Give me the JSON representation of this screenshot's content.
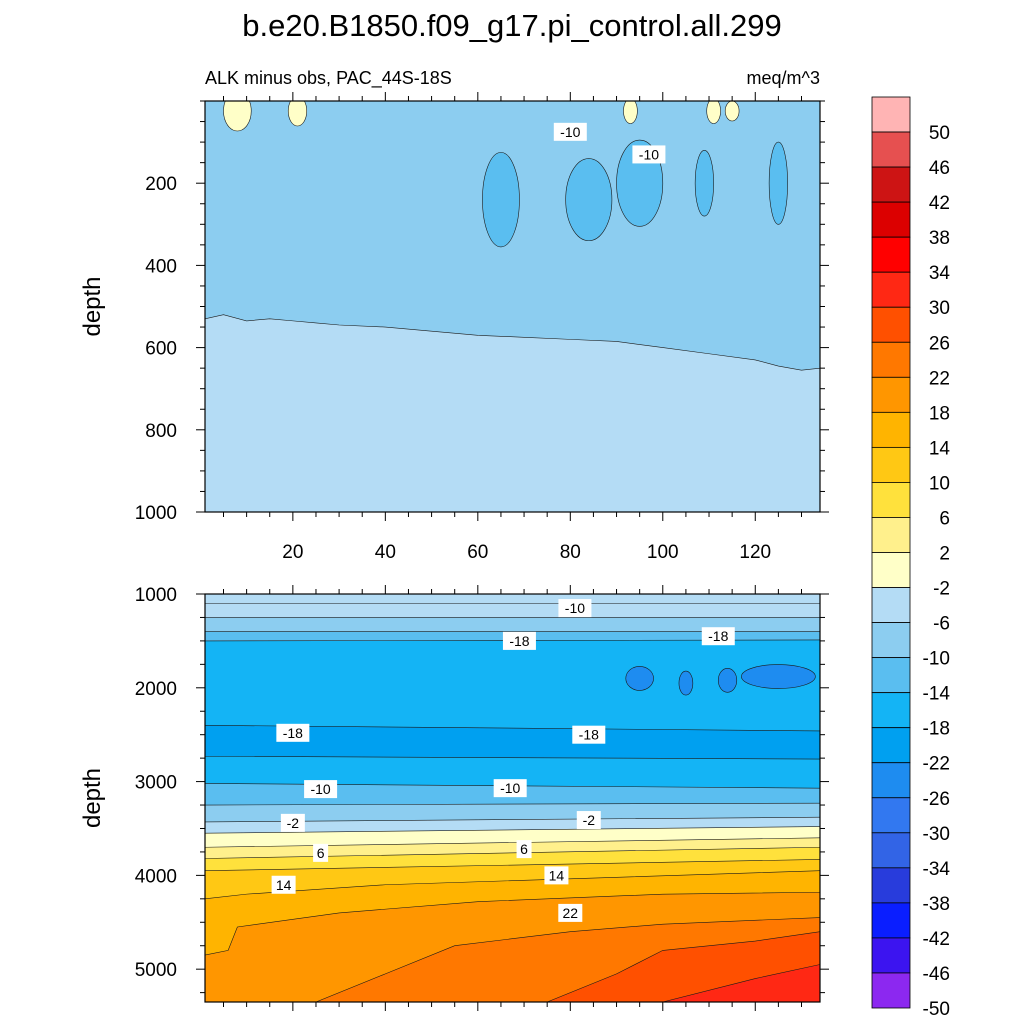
{
  "title": "b.e20.B1850.f09_g17.pi_control.all.299",
  "subtitle_left": "ALK minus obs, PAC_44S-18S",
  "subtitle_right": "meq/m^3",
  "chart_data": {
    "type": "heatmap",
    "variable": "ALK minus obs",
    "region": "PAC_44S-18S",
    "units": "meq/m^3",
    "x": {
      "range": [
        1,
        134
      ],
      "ticks": [
        "20",
        "40",
        "60",
        "80",
        "100",
        "120"
      ],
      "tick_values": [
        20,
        40,
        60,
        80,
        100,
        120
      ]
    },
    "colorbar": {
      "labels": [
        "50",
        "46",
        "42",
        "38",
        "34",
        "30",
        "26",
        "22",
        "18",
        "14",
        "10",
        "6",
        "2",
        "-2",
        "-6",
        "-10",
        "-14",
        "-18",
        "-22",
        "-26",
        "-30",
        "-34",
        "-38",
        "-42",
        "-46",
        "-50"
      ],
      "colors": [
        "#ffb4b4",
        "#e65050",
        "#cd1414",
        "#dc0000",
        "#ff0000",
        "#ff2814",
        "#ff5000",
        "#ff7800",
        "#ff9600",
        "#ffb400",
        "#ffc814",
        "#ffe13c",
        "#fff08c",
        "#ffffc8",
        "#b4dcf5",
        "#8ccdf0",
        "#5abef0",
        "#14b4f5",
        "#00a0f0",
        "#1e8cf0",
        "#3278f0",
        "#3264e6",
        "#283cdc",
        "#0a1eff",
        "#3c14f0",
        "#8c28f0"
      ]
    },
    "panels": [
      {
        "name": "upper",
        "ylabel": "depth",
        "ylim": [
          1000,
          0
        ],
        "yticks": [
          "200",
          "400",
          "600",
          "800",
          "1000"
        ],
        "ytick_values": [
          200,
          400,
          600,
          800,
          1000
        ],
        "contour_labels": [
          {
            "text": "-10",
            "x": 80,
            "y": 75
          },
          {
            "text": "-10",
            "x": 97,
            "y": 130
          }
        ],
        "boundaries": [
          {
            "value": -6,
            "depth": [
              [
                1,
                530
              ],
              [
                5,
                520
              ],
              [
                10,
                535
              ],
              [
                15,
                530
              ],
              [
                20,
                535
              ],
              [
                25,
                540
              ],
              [
                30,
                545
              ],
              [
                40,
                550
              ],
              [
                50,
                560
              ],
              [
                60,
                570
              ],
              [
                70,
                575
              ],
              [
                80,
                580
              ],
              [
                90,
                585
              ],
              [
                100,
                600
              ],
              [
                110,
                615
              ],
              [
                120,
                630
              ],
              [
                125,
                645
              ],
              [
                130,
                655
              ],
              [
                134,
                650
              ]
            ]
          }
        ]
      },
      {
        "name": "lower",
        "ylabel": "depth",
        "ylim": [
          5350,
          1000
        ],
        "yticks": [
          "1000",
          "2000",
          "3000",
          "4000",
          "5000"
        ],
        "ytick_values": [
          1000,
          2000,
          3000,
          4000,
          5000
        ],
        "contour_labels": [
          {
            "text": "-10",
            "x": 81,
            "y": 1150
          },
          {
            "text": "-18",
            "x": 69,
            "y": 1500
          },
          {
            "text": "-18",
            "x": 112,
            "y": 1450
          },
          {
            "text": "-18",
            "x": 20,
            "y": 2480
          },
          {
            "text": "-18",
            "x": 84,
            "y": 2500
          },
          {
            "text": "-10",
            "x": 26,
            "y": 3080
          },
          {
            "text": "-10",
            "x": 67,
            "y": 3070
          },
          {
            "text": "-2",
            "x": 20,
            "y": 3440
          },
          {
            "text": "-2",
            "x": 84,
            "y": 3410
          },
          {
            "text": "6",
            "x": 26,
            "y": 3760
          },
          {
            "text": "6",
            "x": 70,
            "y": 3720
          },
          {
            "text": "14",
            "x": 18,
            "y": 4100
          },
          {
            "text": "14",
            "x": 77,
            "y": 4000
          },
          {
            "text": "22",
            "x": 80,
            "y": 4400
          }
        ],
        "boundaries": [
          {
            "value": -6,
            "depth": [
              [
                1,
                1100
              ],
              [
                134,
                1100
              ]
            ]
          },
          {
            "value": -10,
            "depth": [
              [
                1,
                1250
              ],
              [
                134,
                1250
              ]
            ]
          },
          {
            "value": -14,
            "depth": [
              [
                1,
                1400
              ],
              [
                134,
                1400
              ]
            ]
          },
          {
            "value": -18,
            "depth": [
              [
                1,
                1500
              ],
              [
                134,
                1490
              ]
            ]
          },
          {
            "value": -22,
            "depth": [
              [
                1,
                2400
              ],
              [
                134,
                2460
              ]
            ]
          },
          {
            "value": -18,
            "depth": [
              [
                1,
                2730
              ],
              [
                134,
                2760
              ]
            ]
          },
          {
            "value": -14,
            "depth": [
              [
                1,
                3020
              ],
              [
                134,
                3070
              ]
            ]
          },
          {
            "value": -10,
            "depth": [
              [
                1,
                3250
              ],
              [
                134,
                3230
              ]
            ]
          },
          {
            "value": -6,
            "depth": [
              [
                1,
                3430
              ],
              [
                134,
                3380
              ]
            ]
          },
          {
            "value": -2,
            "depth": [
              [
                1,
                3550
              ],
              [
                134,
                3480
              ]
            ]
          },
          {
            "value": 2,
            "depth": [
              [
                1,
                3700
              ],
              [
                134,
                3600
              ]
            ]
          },
          {
            "value": 6,
            "depth": [
              [
                1,
                3820
              ],
              [
                134,
                3700
              ]
            ]
          },
          {
            "value": 10,
            "depth": [
              [
                1,
                3950
              ],
              [
                134,
                3830
              ]
            ]
          },
          {
            "value": 14,
            "depth": [
              [
                1,
                4250
              ],
              [
                10,
                4200
              ],
              [
                40,
                4100
              ],
              [
                134,
                3950
              ]
            ]
          },
          {
            "value": 18,
            "depth": [
              [
                1,
                4850
              ],
              [
                6,
                4800
              ],
              [
                8,
                4550
              ],
              [
                30,
                4400
              ],
              [
                60,
                4280
              ],
              [
                100,
                4200
              ],
              [
                134,
                4180
              ]
            ]
          },
          {
            "value": 22,
            "depth": [
              [
                25,
                5350
              ],
              [
                40,
                5050
              ],
              [
                55,
                4750
              ],
              [
                80,
                4600
              ],
              [
                100,
                4520
              ],
              [
                134,
                4450
              ]
            ]
          },
          {
            "value": 26,
            "depth": [
              [
                75,
                5350
              ],
              [
                90,
                5050
              ],
              [
                100,
                4800
              ],
              [
                120,
                4700
              ],
              [
                134,
                4600
              ]
            ]
          },
          {
            "value": 30,
            "depth": [
              [
                100,
                5350
              ],
              [
                120,
                5100
              ],
              [
                134,
                4950
              ]
            ]
          }
        ]
      }
    ]
  }
}
